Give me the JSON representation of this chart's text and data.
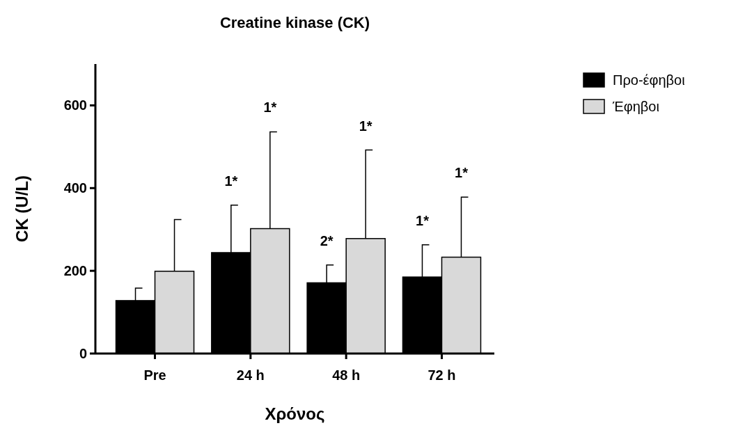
{
  "chart_data": {
    "type": "bar",
    "title": "Creatine kinase (CK)",
    "xlabel": "Χρόνος",
    "ylabel": "CK (U/L)",
    "categories": [
      "Pre",
      "24 h",
      "48 h",
      "72 h"
    ],
    "series": [
      {
        "name": "Προ-έφηβοι",
        "color": "#000000",
        "values": [
          128,
          244,
          171,
          185
        ],
        "errors": [
          [
            128,
            158
          ],
          [
            244,
            359
          ],
          [
            171,
            214
          ],
          [
            185,
            263
          ]
        ]
      },
      {
        "name": "Έφηβοι",
        "color": "#d9d9d9",
        "values": [
          199,
          302,
          278,
          233
        ],
        "errors": [
          [
            199,
            324
          ],
          [
            302,
            536
          ],
          [
            278,
            492
          ],
          [
            233,
            378
          ]
        ]
      }
    ],
    "ylim": [
      0,
      700
    ],
    "yticks": [
      0,
      200,
      400,
      600
    ],
    "grid": false,
    "legend": "top right",
    "annotations": [
      "1*",
      "1*",
      "2*",
      "1*",
      "1*",
      "1*"
    ]
  }
}
